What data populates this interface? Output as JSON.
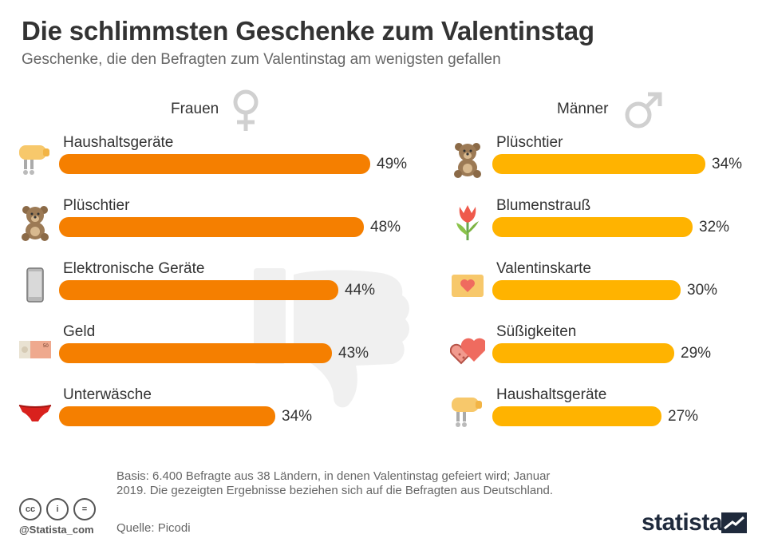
{
  "title": "Die schlimmsten Geschenke zum Valentinstag",
  "subtitle": "Geschenke, die den Befragten zum Valentinstag am wenigsten gefallen",
  "chart_data": [
    {
      "type": "bar",
      "orientation": "horizontal",
      "group": "Frauen",
      "color": "#f57f00",
      "categories": [
        "Haushaltsgeräte",
        "Plüschtier",
        "Elektronische Geräte",
        "Geld",
        "Unterwäsche"
      ],
      "values": [
        49,
        48,
        44,
        43,
        34
      ],
      "labels": [
        "49%",
        "48%",
        "44%",
        "43%",
        "34%"
      ],
      "icons": [
        "mixer-icon",
        "teddy-bear-icon",
        "smartphone-icon",
        "banknote-icon",
        "underwear-icon"
      ],
      "unit": "%"
    },
    {
      "type": "bar",
      "orientation": "horizontal",
      "group": "Männer",
      "color": "#ffb300",
      "categories": [
        "Plüschtier",
        "Blumenstrauß",
        "Valentinskarte",
        "Süßigkeiten",
        "Haushaltsgeräte"
      ],
      "values": [
        34,
        32,
        30,
        29,
        27
      ],
      "labels": [
        "34%",
        "32%",
        "30%",
        "29%",
        "27%"
      ],
      "icons": [
        "teddy-bear-icon",
        "tulip-icon",
        "heart-card-icon",
        "heart-sweets-icon",
        "mixer-icon"
      ],
      "unit": "%"
    }
  ],
  "footer": {
    "basis": "Basis: 6.400 Befragte aus 38 Ländern, in denen Valentinstag gefeiert wird; Januar 2019. Die gezeigten Ergebnisse beziehen sich auf die Befragten aus Deutschland.",
    "source": "Quelle: Picodi",
    "handle": "@Statista_com",
    "brand": "statista"
  }
}
